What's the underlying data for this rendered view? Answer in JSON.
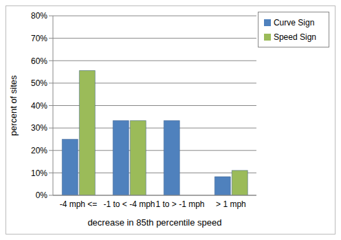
{
  "chart_data": {
    "type": "bar",
    "x_label": "decrease in 85th percentile speed",
    "y_label": "percent of sites",
    "categories": [
      "-4 mph <=",
      "-1 to < -4 mph",
      "1 to > -1 mph",
      "> 1 mph"
    ],
    "series": [
      {
        "name": "Curve Sign",
        "color": "#4f81bd",
        "values": [
          25,
          33.3,
          33.3,
          8.3
        ]
      },
      {
        "name": "Speed Sign",
        "color": "#9bbb59",
        "values": [
          55.6,
          33.3,
          0,
          11.1
        ]
      }
    ],
    "ylim": [
      0,
      80
    ],
    "yticks": [
      {
        "value": 0,
        "label": "0%"
      },
      {
        "value": 10,
        "label": "10%"
      },
      {
        "value": 20,
        "label": "20%"
      },
      {
        "value": 30,
        "label": "30%"
      },
      {
        "value": 40,
        "label": "40%"
      },
      {
        "value": 50,
        "label": "50%"
      },
      {
        "value": 60,
        "label": "60%"
      },
      {
        "value": 70,
        "label": "70%"
      },
      {
        "value": 80,
        "label": "80%"
      }
    ],
    "grid": true,
    "legend": "upper right"
  }
}
